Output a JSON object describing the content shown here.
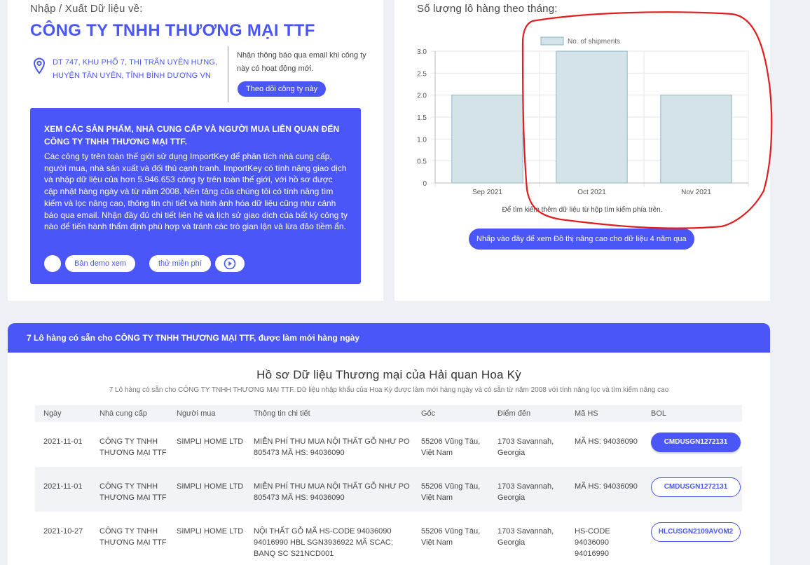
{
  "company": {
    "import_label": "Nhập / Xuất Dữ liệu về:",
    "name": "CÔNG TY TNHH THƯƠNG MẠI TTF",
    "address_line1": "DT 747, KHU PHỐ 7, THỊ TRẤN UYÊN HƯNG,",
    "address_line2": "HUYỆN TÂN UYÊN, TỈNH BÌNH DƯƠNG VN",
    "notify_text": "Nhận thông báo qua email khi công ty này có hoạt động mới.",
    "follow_label": "Theo dõi công ty này"
  },
  "promo": {
    "title": "XEM CÁC SẢN PHẨM, NHÀ CUNG CẤP VÀ NGƯỜI MUA LIÊN QUAN ĐẾN CÔNG TY TNHH THƯƠNG MẠI TTF.",
    "body": "Các công ty trên toàn thế giới sử dụng ImportKey để phân tích nhà cung cấp, người mua, nhà sản xuất và đối thủ cạnh tranh. ImportKey có tính năng giao dịch và nhập dữ liệu của hơn 5.946.653 công ty trên toàn thế giới, với hồ sơ được cập nhật hàng ngày và từ năm 2008. Nền tảng của chúng tôi có tính năng tìm kiếm và lọc nâng cao, thông tin chi tiết và hình ảnh hóa dữ liệu cũng như cảnh báo qua email. Nhận đầy đủ chi tiết liên hệ và lịch sử giao dịch của bất kỳ công ty nào để tiến hành thẩm định phù hợp và tránh các trò gian lận và lừa đảo tiềm ẩn.",
    "demo_label": "Bản demo xem",
    "trial_label": "thử miễn phí"
  },
  "chart": {
    "title": "Số lượng lô hàng theo tháng:",
    "hint": "Để tìm kiếm thêm dữ liệu từ hộp tìm kiếm phía trên.",
    "cta_label": "Nhấp vào đây để xem Đồ thị nâng cao cho dữ liệu 4 năm qua"
  },
  "chart_data": {
    "type": "bar",
    "categories": [
      "Sep 2021",
      "Oct 2021",
      "Nov 2021"
    ],
    "series": [
      {
        "name": "No. of shipments",
        "values": [
          2,
          3,
          2
        ]
      }
    ],
    "y_ticks": [
      "0",
      "0.5",
      "1.0",
      "1.5",
      "2.0",
      "2.5",
      "3.0"
    ],
    "ylim": [
      0,
      3
    ],
    "grid": true,
    "legend": "top",
    "bar_color": "#d3e3e8",
    "bar_border": "#8ab4c4"
  },
  "shipments": {
    "header": "7 Lô hàng có sẵn cho CÔNG TY TNHH THƯƠNG MẠI TTF, được làm mới hàng ngày",
    "records_title": "Hồ sơ Dữ liệu Thương mại của Hải quan Hoa Kỳ",
    "records_sub": "7 Lô hàng có sẵn cho CÔNG TY TNHH THƯƠNG MẠI TTF. Dữ liệu nhập khẩu của Hoa Kỳ được làm mới hàng ngày và có sẵn từ năm 2008 với tính năng lọc và tìm kiếm nâng cao",
    "columns": [
      "Ngày",
      "Nhà cung cấp",
      "Người mua",
      "Thông tin chi tiết",
      "Gốc",
      "Điểm đến",
      "Mã HS",
      "BOL"
    ],
    "rows": [
      {
        "date": "2021-11-01",
        "supplier": "CÔNG TY TNHH THƯƠNG MẠI TTF",
        "buyer": "SIMPLI HOME LTD",
        "details": "MIỄN PHÍ THU MUA NỘI THẤT GỖ NHƯ PO 805473 MÃ HS: 94036090",
        "origin": "55206 Vũng Tàu, Việt Nam",
        "destination": "1703 Savannah, Georgia",
        "hs": "MÃ HS: 94036090",
        "bol": "CMDUSGN1272131"
      },
      {
        "date": "2021-11-01",
        "supplier": "CÔNG TY TNHH THƯƠNG MẠI TTF",
        "buyer": "SIMPLI HOME LTD",
        "details": "MIỄN PHÍ THU MUA NỘI THẤT GỖ NHƯ PO 805473 MÃ HS: 94036090",
        "origin": "55206 Vũng Tàu, Việt Nam",
        "destination": "1703 Savannah, Georgia",
        "hs": "MÃ HS: 94036090",
        "bol": "CMDUSGN1272131"
      },
      {
        "date": "2021-10-27",
        "supplier": "CÔNG TY TNHH THƯƠNG MẠI TTF",
        "buyer": "SIMPLI HOME LTD",
        "details": "NỘI THẤT GỖ MÃ HS-CODE 94036090 94016990 HBL SGN3936922 MÃ SCAC; BANQ SC S21NCD001",
        "origin": "55206 Vũng Tàu, Việt Nam",
        "destination": "1703 Savannah, Georgia",
        "hs": "HS-CODE 94036090 94016990",
        "bol": "HLCUSGN2109AVOM2"
      }
    ]
  },
  "colors": {
    "accent": "#4a56f7",
    "annotation": "#e11d1d"
  }
}
